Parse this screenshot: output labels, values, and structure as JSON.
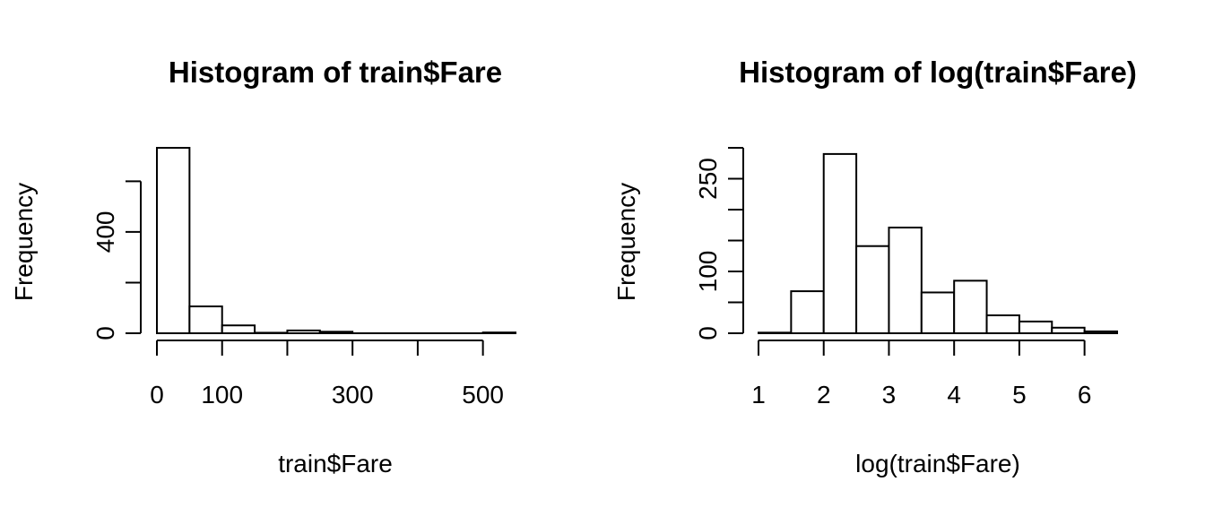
{
  "chart_data": [
    {
      "type": "bar",
      "title": "Histogram of train$Fare",
      "xlabel": "train$Fare",
      "ylabel": "Frequency",
      "bin_edges": [
        0,
        50,
        100,
        150,
        200,
        250,
        300,
        350,
        400,
        450,
        500,
        550
      ],
      "values": [
        732,
        106,
        31,
        2,
        11,
        6,
        0,
        0,
        0,
        0,
        3
      ],
      "xlim": [
        0,
        550
      ],
      "ylim": [
        0,
        732
      ],
      "x_ticks": [
        0,
        100,
        200,
        300,
        400,
        500
      ],
      "x_tick_labels": [
        "0",
        "100",
        "",
        "300",
        "",
        "500"
      ],
      "y_ticks": [
        0,
        200,
        400,
        600
      ],
      "y_tick_labels": [
        "0",
        "",
        "400",
        ""
      ],
      "grid": false
    },
    {
      "type": "bar",
      "title": "Histogram of log(train$Fare)",
      "xlabel": "log(train$Fare)",
      "ylabel": "Frequency",
      "bin_edges": [
        1,
        1.5,
        2,
        2.5,
        3,
        3.5,
        4,
        4.5,
        5,
        5.5,
        6,
        6.5
      ],
      "values": [
        1,
        68,
        290,
        141,
        171,
        66,
        85,
        29,
        19,
        9,
        3
      ],
      "xlim": [
        1,
        6.5
      ],
      "ylim": [
        0,
        300
      ],
      "x_ticks": [
        1,
        2,
        3,
        4,
        5,
        6
      ],
      "x_tick_labels": [
        "1",
        "2",
        "3",
        "4",
        "5",
        "6"
      ],
      "y_ticks": [
        0,
        50,
        100,
        150,
        200,
        250,
        300
      ],
      "y_tick_labels": [
        "0",
        "",
        "100",
        "",
        "",
        "250",
        ""
      ],
      "grid": false
    }
  ]
}
